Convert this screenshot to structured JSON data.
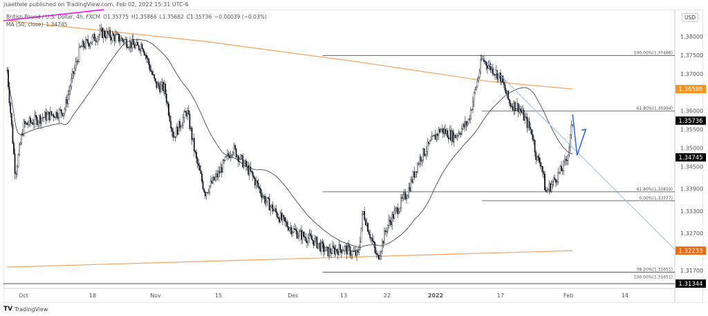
{
  "header": {
    "published": "jsaettele published on TradingView.com, Feb 02, 2022 15:31 UTC-6"
  },
  "legend": {
    "symbol": "British Pound / U.S. Dollar, 4h, FXCM",
    "open": "O1.35775",
    "high": "H1.35866",
    "low": "L1.35682",
    "close": "C1.35736",
    "change": "−0.00039 (−0.03%)",
    "ma": "MA (50, close)",
    "ma_value": "1.34745"
  },
  "currency": "USD",
  "footer": {
    "brand": "TradingView",
    "logo": "TV"
  },
  "chart_data": {
    "type": "candlestick",
    "title": "British Pound / U.S. Dollar, 4h, FXCM",
    "ylim": [
      1.3105,
      1.3895
    ],
    "y_ticks": [
      "1.38000",
      "1.37500",
      "1.37000",
      "1.36000",
      "1.35500",
      "1.35000",
      "1.34500",
      "1.33900",
      "1.33300",
      "1.32700",
      "1.31700"
    ],
    "x_ticks": [
      {
        "label": "Oct",
        "date": "2021-10-01"
      },
      {
        "label": "18",
        "date": "2021-10-18"
      },
      {
        "label": "Nov",
        "date": "2021-11-01"
      },
      {
        "label": "15",
        "date": "2021-11-15"
      },
      {
        "label": "Dec",
        "date": "2021-12-01"
      },
      {
        "label": "13",
        "date": "2021-12-13"
      },
      {
        "label": "22",
        "date": "2021-12-22"
      },
      {
        "label": "2022",
        "date": "2022-01-03",
        "bold": true
      },
      {
        "label": "17",
        "date": "2022-01-17"
      },
      {
        "label": "Feb",
        "date": "2022-02-01"
      },
      {
        "label": "14",
        "date": "2022-02-14"
      }
    ],
    "close_path": [
      [
        "2021-09-27",
        1.371
      ],
      [
        "2021-09-29",
        1.343
      ],
      [
        "2021-10-01",
        1.356
      ],
      [
        "2021-10-05",
        1.358
      ],
      [
        "2021-10-11",
        1.36
      ],
      [
        "2021-10-13",
        1.369
      ],
      [
        "2021-10-15",
        1.377
      ],
      [
        "2021-10-20",
        1.381
      ],
      [
        "2021-10-25",
        1.379
      ],
      [
        "2021-10-28",
        1.377
      ],
      [
        "2021-10-29",
        1.378
      ],
      [
        "2021-11-01",
        1.367
      ],
      [
        "2021-11-03",
        1.366
      ],
      [
        "2021-11-05",
        1.353
      ],
      [
        "2021-11-08",
        1.36
      ],
      [
        "2021-11-10",
        1.347
      ],
      [
        "2021-11-12",
        1.338
      ],
      [
        "2021-11-15",
        1.343
      ],
      [
        "2021-11-18",
        1.35
      ],
      [
        "2021-11-22",
        1.343
      ],
      [
        "2021-11-25",
        1.336
      ],
      [
        "2021-11-29",
        1.33
      ],
      [
        "2021-12-02",
        1.327
      ],
      [
        "2021-12-06",
        1.325
      ],
      [
        "2021-12-09",
        1.322
      ],
      [
        "2021-12-13",
        1.323
      ],
      [
        "2021-12-16",
        1.321
      ],
      [
        "2021-12-17",
        1.333
      ],
      [
        "2021-12-20",
        1.32
      ],
      [
        "2021-12-22",
        1.329
      ],
      [
        "2021-12-27",
        1.338
      ],
      [
        "2021-12-30",
        1.347
      ],
      [
        "2022-01-04",
        1.355
      ],
      [
        "2022-01-07",
        1.353
      ],
      [
        "2022-01-10",
        1.357
      ],
      [
        "2022-01-12",
        1.368
      ],
      [
        "2022-01-13",
        1.374
      ],
      [
        "2022-01-17",
        1.369
      ],
      [
        "2022-01-19",
        1.362
      ],
      [
        "2022-01-21",
        1.361
      ],
      [
        "2022-01-24",
        1.354
      ],
      [
        "2022-01-25",
        1.347
      ],
      [
        "2022-01-26",
        1.346
      ],
      [
        "2022-01-27",
        1.338
      ],
      [
        "2022-01-31",
        1.345
      ],
      [
        "2022-02-01",
        1.349
      ],
      [
        "2022-02-02",
        1.35736
      ]
    ],
    "ma_upper_orange": [
      [
        "2021-09-27",
        1.3843
      ],
      [
        "2021-11-12",
        1.3787
      ],
      [
        "2021-12-17",
        1.373
      ],
      [
        "2022-01-14",
        1.368
      ],
      [
        "2022-02-02",
        1.36586
      ]
    ],
    "ma_lower_orange": [
      [
        "2021-09-27",
        1.3179
      ],
      [
        "2022-02-02",
        1.32233
      ]
    ],
    "price_labels": [
      {
        "value": "1.36586",
        "color": "#f7931a"
      },
      {
        "value": "1.35736",
        "color": "#000000"
      },
      {
        "value": "1.34745",
        "color": "#000000"
      },
      {
        "value": "1.32233",
        "color": "#f06a12"
      },
      {
        "value": "1.31344",
        "color": "#000000"
      }
    ],
    "fib_levels": [
      {
        "label": "100.00%(1.37488)",
        "price": 1.37488,
        "from": "2021-12-08"
      },
      {
        "label": "61.80%(1.35994)",
        "price": 1.35994,
        "from": "2022-01-13"
      },
      {
        "label": "61.80%(1.33819)",
        "price": 1.33819,
        "from": "2021-12-08"
      },
      {
        "label": "0.00%(1.33577)",
        "price": 1.33577,
        "from": "2022-01-13"
      },
      {
        "label": "38.20%(1.31651)",
        "price": 1.31651,
        "from": "2021-12-08"
      },
      {
        "label": "100.00%(1.31651)",
        "price": 1.31651,
        "from": "2021-12-08"
      }
    ],
    "support_line": 1.31344,
    "trendline": [
      [
        "2022-01-13",
        1.3745
      ],
      [
        "2022-02-14",
        1.3245
      ]
    ],
    "forecast_arrow": [
      [
        "2022-02-02",
        1.359
      ],
      [
        "2022-02-03",
        1.348
      ],
      [
        "2022-02-05",
        1.355
      ]
    ],
    "colors": {
      "up": "#131722",
      "down": "#131722",
      "ma50": "#333333",
      "ma_orange": "#f7a35c",
      "trendline": "#90bff9",
      "arrow": "#2962ff",
      "marker": "#ff00ff"
    }
  }
}
